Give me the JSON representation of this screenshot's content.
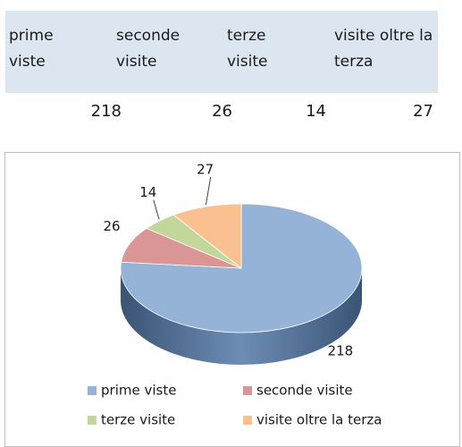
{
  "table": {
    "headers": [
      "prime viste",
      "seconde visite",
      "terze visite",
      "visite oltre la terza"
    ],
    "rows": [
      [
        218,
        26,
        14,
        27
      ]
    ]
  },
  "chart_data": {
    "type": "pie",
    "categories": [
      "prime viste",
      "seconde visite",
      "terze visite",
      "visite oltre la terza"
    ],
    "values": [
      218,
      26,
      14,
      27
    ],
    "colors": [
      "#95b3d7",
      "#d99694",
      "#c3d69b",
      "#fac090"
    ],
    "legend": "bottom"
  }
}
